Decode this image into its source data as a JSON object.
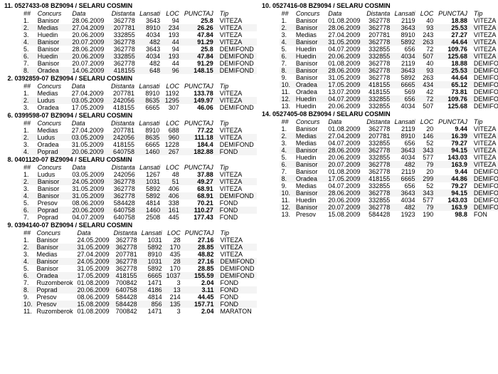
{
  "headers": {
    "num": "##",
    "concurs": "Concurs",
    "data": "Data",
    "distanta": "Distanta",
    "lansati": "Lansati",
    "loc": "LOC",
    "punctaj": "PUNCTAJ",
    "tip": "Tip"
  },
  "owner": "SELARU COSMIN",
  "ring_prefix": "BZ9094",
  "tips": {
    "viteza": "VITEZA",
    "demifond": "DEMIFOND",
    "fond": "FOND",
    "maraton": "MARATON"
  },
  "sections_left": [
    {
      "rank": "11.",
      "id": "0527433-08",
      "rows": [
        [
          "1.",
          "Banisor",
          "28.06.2009",
          "362778",
          "3643",
          "94",
          "25.8",
          "VITEZA"
        ],
        [
          "2.",
          "Medias",
          "27.04.2009",
          "207781",
          "8910",
          "234",
          "26.26",
          "VITEZA"
        ],
        [
          "3.",
          "Huedin",
          "20.06.2009",
          "332855",
          "4034",
          "193",
          "47.84",
          "VITEZA"
        ],
        [
          "4.",
          "Banisor",
          "20.07.2009",
          "362778",
          "482",
          "44",
          "91.29",
          "VITEZA"
        ],
        [
          "5.",
          "Banisor",
          "28.06.2009",
          "362778",
          "3643",
          "94",
          "25.8",
          "DEMIFOND"
        ],
        [
          "6.",
          "Huedin",
          "20.06.2009",
          "332855",
          "4034",
          "193",
          "47.84",
          "DEMIFOND"
        ],
        [
          "7.",
          "Banisor",
          "20.07.2009",
          "362778",
          "482",
          "44",
          "91.29",
          "DEMIFOND"
        ],
        [
          "8.",
          "Oradea",
          "14.06.2009",
          "418155",
          "648",
          "96",
          "148.15",
          "DEMIFOND"
        ]
      ]
    },
    {
      "rank": "2.",
      "id": "0392859-07",
      "rows": [
        [
          "1.",
          "Medias",
          "27.04.2009",
          "207781",
          "8910",
          "1192",
          "133.78",
          "VITEZA"
        ],
        [
          "2.",
          "Ludus",
          "03.05.2009",
          "242056",
          "8635",
          "1295",
          "149.97",
          "VITEZA"
        ],
        [
          "3.",
          "Oradea",
          "17.05.2009",
          "418155",
          "6665",
          "307",
          "46.06",
          "DEMIFOND"
        ]
      ]
    },
    {
      "rank": "6.",
      "id": "0399598-07",
      "rows": [
        [
          "1.",
          "Medias",
          "27.04.2009",
          "207781",
          "8910",
          "688",
          "77.22",
          "VITEZA"
        ],
        [
          "2.",
          "Ludus",
          "03.05.2009",
          "242056",
          "8635",
          "960",
          "111.18",
          "VITEZA"
        ],
        [
          "3.",
          "Oradea",
          "31.05.2009",
          "418155",
          "6665",
          "1228",
          "184.4",
          "DEMIFOND"
        ],
        [
          "4.",
          "Poprad",
          "20.06.2009",
          "640758",
          "1460",
          "267",
          "182.88",
          "FOND"
        ]
      ]
    },
    {
      "rank": "8.",
      "id": "0401120-07",
      "rows": [
        [
          "1.",
          "Ludus",
          "03.05.2009",
          "242056",
          "1267",
          "48",
          "37.88",
          "VITEZA"
        ],
        [
          "2.",
          "Banisor",
          "24.05.2009",
          "362778",
          "1031",
          "51",
          "49.27",
          "VITEZA"
        ],
        [
          "3.",
          "Banisor",
          "31.05.2009",
          "362778",
          "5892",
          "406",
          "68.91",
          "VITEZA"
        ],
        [
          "4.",
          "Banisor",
          "31.05.2009",
          "362778",
          "5892",
          "406",
          "68.91",
          "DEMIFOND"
        ],
        [
          "5.",
          "Presov",
          "08.06.2009",
          "584428",
          "4814",
          "338",
          "70.21",
          "FOND"
        ],
        [
          "6.",
          "Poprad",
          "20.06.2009",
          "640758",
          "1460",
          "161",
          "110.27",
          "FOND"
        ],
        [
          "7.",
          "Poprad",
          "04.07.2009",
          "640758",
          "2508",
          "445",
          "177.43",
          "FOND"
        ]
      ]
    },
    {
      "rank": "9.",
      "id": "0394140-07",
      "rows": [
        [
          "1.",
          "Banisor",
          "24.05.2009",
          "362778",
          "1031",
          "28",
          "27.16",
          "VITEZA"
        ],
        [
          "2.",
          "Banisor",
          "31.05.2009",
          "362778",
          "5892",
          "170",
          "28.85",
          "VITEZA"
        ],
        [
          "3.",
          "Medias",
          "27.04.2009",
          "207781",
          "8910",
          "435",
          "48.82",
          "VITEZA"
        ],
        [
          "4.",
          "Banisor",
          "24.05.2009",
          "362778",
          "1031",
          "28",
          "27.16",
          "DEMIFOND"
        ],
        [
          "5.",
          "Banisor",
          "31.05.2009",
          "362778",
          "5892",
          "170",
          "28.85",
          "DEMIFOND"
        ],
        [
          "6.",
          "Oradea",
          "17.05.2009",
          "418155",
          "6665",
          "1037",
          "155.59",
          "DEMIFOND"
        ],
        [
          "7.",
          "Ruzomberok",
          "01.08.2009",
          "700842",
          "1471",
          "3",
          "2.04",
          "FOND"
        ],
        [
          "8.",
          "Poprad",
          "20.06.2009",
          "640758",
          "4186",
          "13",
          "3.11",
          "FOND"
        ],
        [
          "9.",
          "Presov",
          "08.06.2009",
          "584428",
          "4814",
          "214",
          "44.45",
          "FOND"
        ],
        [
          "10.",
          "Presov",
          "15.08.2009",
          "584428",
          "856",
          "135",
          "157.71",
          "FOND"
        ],
        [
          "11.",
          "Ruzomberok",
          "01.08.2009",
          "700842",
          "1471",
          "3",
          "2.04",
          "MARATON"
        ]
      ]
    }
  ],
  "sections_right": [
    {
      "rank": "10.",
      "id": "0527416-08",
      "rows": [
        [
          "1.",
          "Banisor",
          "01.08.2009",
          "362778",
          "2119",
          "40",
          "18.88",
          "VITEZA"
        ],
        [
          "2.",
          "Banisor",
          "28.06.2009",
          "362778",
          "3643",
          "93",
          "25.53",
          "VITEZA"
        ],
        [
          "3.",
          "Medias",
          "27.04.2009",
          "207781",
          "8910",
          "243",
          "27.27",
          "VITEZA"
        ],
        [
          "4.",
          "Banisor",
          "31.05.2009",
          "362778",
          "5892",
          "263",
          "44.64",
          "VITEZA"
        ],
        [
          "5.",
          "Huedin",
          "04.07.2009",
          "332855",
          "656",
          "72",
          "109.76",
          "VITEZA"
        ],
        [
          "6.",
          "Huedin",
          "20.06.2009",
          "332855",
          "4034",
          "507",
          "125.68",
          "VITEZA"
        ],
        [
          "7.",
          "Banisor",
          "01.08.2009",
          "362778",
          "2119",
          "40",
          "18.88",
          "DEMIFON"
        ],
        [
          "8.",
          "Banisor",
          "28.06.2009",
          "362778",
          "3643",
          "93",
          "25.53",
          "DEMIFON"
        ],
        [
          "9.",
          "Banisor",
          "31.05.2009",
          "362778",
          "5892",
          "263",
          "44.64",
          "DEMIFON"
        ],
        [
          "10.",
          "Oradea",
          "17.05.2009",
          "418155",
          "6665",
          "434",
          "65.12",
          "DEMIFON"
        ],
        [
          "11.",
          "Oradea",
          "13.07.2009",
          "418155",
          "569",
          "42",
          "73.81",
          "DEMIFON"
        ],
        [
          "12.",
          "Huedin",
          "04.07.2009",
          "332855",
          "656",
          "72",
          "109.76",
          "DEMIFON"
        ],
        [
          "13.",
          "Huedin",
          "20.06.2009",
          "332855",
          "4034",
          "507",
          "125.68",
          "DEMIFON"
        ]
      ]
    },
    {
      "rank": "14.",
      "id": "0527405-08",
      "rows": [
        [
          "1.",
          "Banisor",
          "01.08.2009",
          "362778",
          "2119",
          "20",
          "9.44",
          "VITEZA"
        ],
        [
          "2.",
          "Medias",
          "27.04.2009",
          "207781",
          "8910",
          "146",
          "16.39",
          "VITEZA"
        ],
        [
          "3.",
          "Medias",
          "04.07.2009",
          "332855",
          "656",
          "52",
          "79.27",
          "VITEZA"
        ],
        [
          "4.",
          "Banisor",
          "28.06.2009",
          "362778",
          "3643",
          "343",
          "94.15",
          "VITEZA"
        ],
        [
          "5.",
          "Huedin",
          "20.06.2009",
          "332855",
          "4034",
          "577",
          "143.03",
          "VITEZA"
        ],
        [
          "6.",
          "Banisor",
          "20.07.2009",
          "362778",
          "482",
          "79",
          "163.9",
          "VITEZA"
        ],
        [
          "7.",
          "Banisor",
          "01.08.2009",
          "362778",
          "2119",
          "20",
          "9.44",
          "DEMIFON"
        ],
        [
          "8.",
          "Oradea",
          "17.05.2009",
          "418155",
          "6665",
          "299",
          "44.86",
          "DEMIFON"
        ],
        [
          "9.",
          "Medias",
          "04.07.2009",
          "332855",
          "656",
          "52",
          "79.27",
          "DEMIFON"
        ],
        [
          "10.",
          "Banisor",
          "28.06.2009",
          "362778",
          "3643",
          "343",
          "94.15",
          "DEMIFON"
        ],
        [
          "11.",
          "Huedin",
          "20.06.2009",
          "332855",
          "4034",
          "577",
          "143.03",
          "DEMIFON"
        ],
        [
          "12.",
          "Banisor",
          "20.07.2009",
          "362778",
          "482",
          "79",
          "163.9",
          "DEMIFON"
        ],
        [
          "13.",
          "Presov",
          "15.08.2009",
          "584428",
          "1923",
          "190",
          "98.8",
          "FON"
        ]
      ]
    }
  ]
}
